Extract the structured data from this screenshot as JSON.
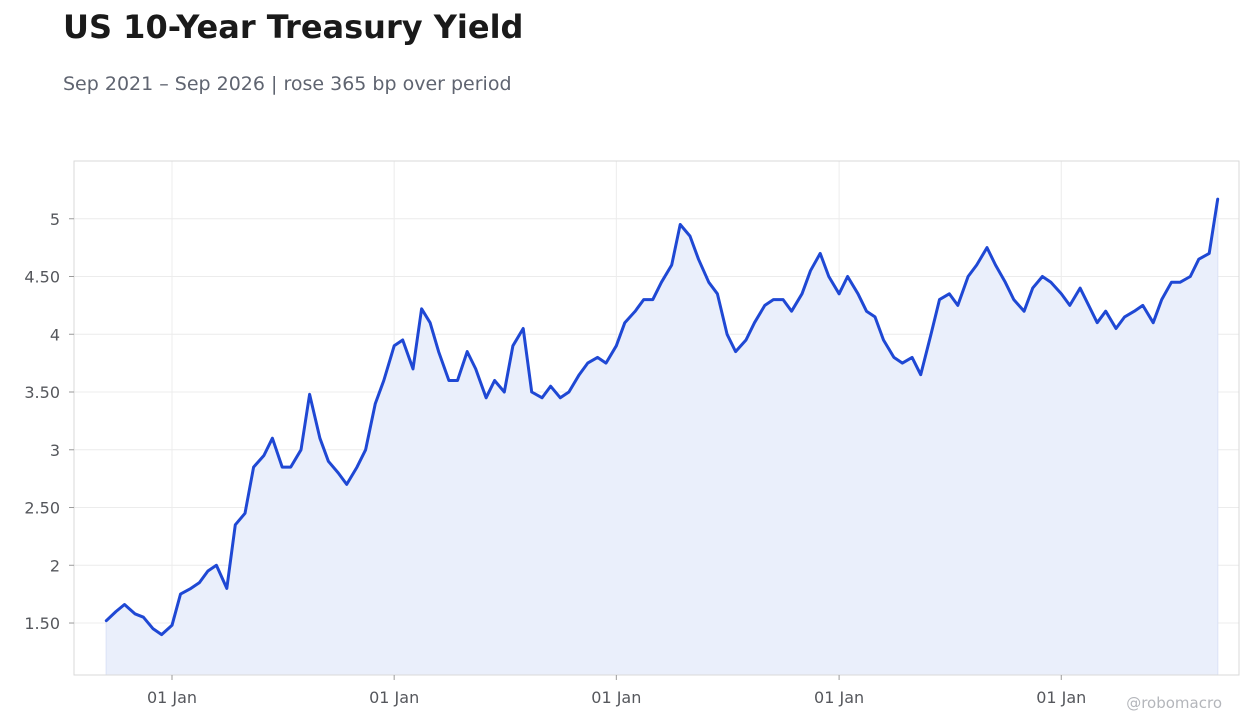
{
  "title": "US 10-Year Treasury Yield",
  "subtitle": "Sep 2021 – Sep 2026 | rose 365 bp over period",
  "watermark": "@robomacro",
  "colors": {
    "line": "#1f48d4",
    "fill": "#eaeffb",
    "grid": "#ececec",
    "frame": "#d9d9d9"
  },
  "chart_data": {
    "type": "area",
    "title": "US 10-Year Treasury Yield",
    "subtitle": "Sep 2021 – Sep 2026 | rose 365 bp over period",
    "xlabel": "",
    "ylabel": "",
    "xlim": [
      "2021-07-24",
      "2026-10-20"
    ],
    "ylim": [
      1.05,
      5.5
    ],
    "grid": true,
    "legend": "none",
    "x_ticks": [
      "2022-01-01",
      "2023-01-01",
      "2024-01-01",
      "2025-01-01",
      "2026-01-01"
    ],
    "x_tick_labels": [
      "01 Jan",
      "01 Jan",
      "01 Jan",
      "01 Jan",
      "01 Jan"
    ],
    "y_ticks": [
      1.5,
      2,
      2.5,
      3,
      3.5,
      4,
      4.5,
      5
    ],
    "y_tick_labels": [
      "1.50",
      "2",
      "2.50",
      "3",
      "3.50",
      "4",
      "4.50",
      "5"
    ],
    "series": [
      {
        "x": [
          "2021-09-15",
          "2021-10-01",
          "2021-10-15",
          "2021-11-01",
          "2021-11-15",
          "2021-12-01",
          "2021-12-15",
          "2022-01-01",
          "2022-01-15",
          "2022-02-01",
          "2022-02-15",
          "2022-03-01",
          "2022-03-15",
          "2022-04-01",
          "2022-04-15",
          "2022-05-01",
          "2022-05-15",
          "2022-06-01",
          "2022-06-15",
          "2022-07-01",
          "2022-07-15",
          "2022-08-01",
          "2022-08-15",
          "2022-09-01",
          "2022-09-15",
          "2022-10-01",
          "2022-10-15",
          "2022-11-01",
          "2022-11-15",
          "2022-12-01",
          "2022-12-15",
          "2023-01-01",
          "2023-01-15",
          "2023-02-01",
          "2023-02-15",
          "2023-03-01",
          "2023-03-15",
          "2023-04-01",
          "2023-04-15",
          "2023-05-01",
          "2023-05-15",
          "2023-06-01",
          "2023-06-15",
          "2023-07-01",
          "2023-07-15",
          "2023-08-01",
          "2023-08-15",
          "2023-09-01",
          "2023-09-15",
          "2023-10-01",
          "2023-10-15",
          "2023-11-01",
          "2023-11-15",
          "2023-12-01",
          "2023-12-15",
          "2024-01-01",
          "2024-01-15",
          "2024-02-01",
          "2024-02-15",
          "2024-03-01",
          "2024-03-15",
          "2024-04-01",
          "2024-04-15",
          "2024-05-01",
          "2024-05-15",
          "2024-06-01",
          "2024-06-15",
          "2024-07-01",
          "2024-07-15",
          "2024-08-01",
          "2024-08-15",
          "2024-09-01",
          "2024-09-15",
          "2024-10-01",
          "2024-10-15",
          "2024-11-01",
          "2024-11-15",
          "2024-12-01",
          "2024-12-15",
          "2025-01-01",
          "2025-01-15",
          "2025-02-01",
          "2025-02-15",
          "2025-03-01",
          "2025-03-15",
          "2025-04-01",
          "2025-04-15",
          "2025-05-01",
          "2025-05-15",
          "2025-06-01",
          "2025-06-15",
          "2025-07-01",
          "2025-07-15",
          "2025-08-01",
          "2025-08-15",
          "2025-09-01",
          "2025-09-15",
          "2025-10-01",
          "2025-10-15",
          "2025-11-01",
          "2025-11-15",
          "2025-12-01",
          "2025-12-15",
          "2026-01-01",
          "2026-01-15",
          "2026-02-01",
          "2026-02-15",
          "2026-03-01",
          "2026-03-15",
          "2026-04-01",
          "2026-04-15",
          "2026-05-01",
          "2026-05-15",
          "2026-06-01",
          "2026-06-15",
          "2026-07-01",
          "2026-07-15",
          "2026-08-01",
          "2026-08-15",
          "2026-09-01",
          "2026-09-15"
        ],
        "values": [
          1.52,
          1.6,
          1.66,
          1.58,
          1.55,
          1.45,
          1.4,
          1.48,
          1.75,
          1.8,
          1.85,
          1.95,
          2.0,
          1.8,
          2.35,
          2.45,
          2.85,
          2.95,
          3.1,
          2.85,
          2.85,
          3.0,
          3.48,
          3.1,
          2.9,
          2.8,
          2.7,
          2.85,
          3.0,
          3.4,
          3.6,
          3.9,
          3.95,
          3.7,
          4.22,
          4.1,
          3.85,
          3.6,
          3.6,
          3.85,
          3.7,
          3.45,
          3.6,
          3.5,
          3.9,
          4.05,
          3.5,
          3.45,
          3.55,
          3.45,
          3.5,
          3.65,
          3.75,
          3.8,
          3.75,
          3.9,
          4.1,
          4.2,
          4.3,
          4.3,
          4.45,
          4.6,
          4.95,
          4.85,
          4.65,
          4.45,
          4.35,
          4.0,
          3.85,
          3.95,
          4.1,
          4.25,
          4.3,
          4.3,
          4.2,
          4.35,
          4.55,
          4.7,
          4.5,
          4.35,
          4.5,
          4.35,
          4.2,
          4.15,
          3.95,
          3.8,
          3.75,
          3.8,
          3.65,
          4.0,
          4.3,
          4.35,
          4.25,
          4.5,
          4.6,
          4.75,
          4.6,
          4.45,
          4.3,
          4.2,
          4.4,
          4.5,
          4.45,
          4.35,
          4.25,
          4.4,
          4.25,
          4.1,
          4.2,
          4.05,
          4.15,
          4.2,
          4.25,
          4.1,
          4.3,
          4.45,
          4.45,
          4.5,
          4.65,
          4.7,
          5.17
        ]
      }
    ]
  }
}
